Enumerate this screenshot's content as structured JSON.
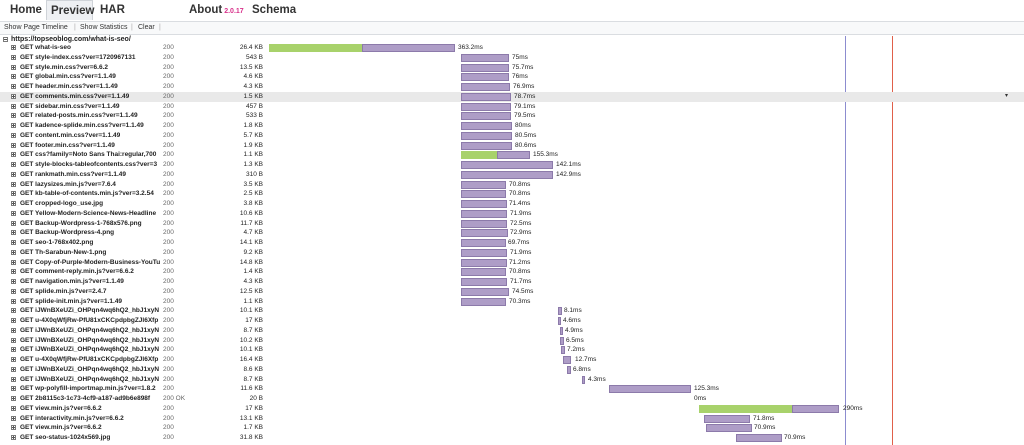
{
  "tabs": {
    "home": "Home",
    "preview": "Preview",
    "har": "HAR",
    "about": "About",
    "version": "2.0.17",
    "schema": "Schema"
  },
  "toolbar": {
    "show_page_timeline": "Show Page Timeline",
    "show_statistics": "Show Statistics",
    "clear": "Clear",
    "separator": "|"
  },
  "page": {
    "url": "https://topseoblog.com/what-is-seo/"
  },
  "timeline": {
    "dom_content_loaded_color": "#8c8ccf",
    "onload_color": "#e0604a"
  },
  "entries": [
    {
      "url": "GET what-is-seo",
      "status": "200",
      "size": "26.4 KB",
      "time": "363.2ms"
    },
    {
      "url": "GET style-index.css?ver=1720967131",
      "status": "200",
      "size": "543 B",
      "time": "75ms"
    },
    {
      "url": "GET style.min.css?ver=6.6.2",
      "status": "200",
      "size": "13.5 KB",
      "time": "75.7ms"
    },
    {
      "url": "GET global.min.css?ver=1.1.49",
      "status": "200",
      "size": "4.6 KB",
      "time": "76ms"
    },
    {
      "url": "GET header.min.css?ver=1.1.49",
      "status": "200",
      "size": "4.3 KB",
      "time": "76.9ms"
    },
    {
      "url": "GET comments.min.css?ver=1.1.49",
      "status": "200",
      "size": "1.5 KB",
      "time": "78.7ms"
    },
    {
      "url": "GET sidebar.min.css?ver=1.1.49",
      "status": "200",
      "size": "457 B",
      "time": "79.1ms"
    },
    {
      "url": "GET related-posts.min.css?ver=1.1.49",
      "status": "200",
      "size": "533 B",
      "time": "79.5ms"
    },
    {
      "url": "GET kadence-splide.min.css?ver=1.1.49",
      "status": "200",
      "size": "1.8 KB",
      "time": "80ms"
    },
    {
      "url": "GET content.min.css?ver=1.1.49",
      "status": "200",
      "size": "5.7 KB",
      "time": "80.5ms"
    },
    {
      "url": "GET footer.min.css?ver=1.1.49",
      "status": "200",
      "size": "1.9 KB",
      "time": "80.6ms"
    },
    {
      "url": "GET css?family=Noto Sans Thai:regular,700",
      "status": "200",
      "size": "1.1 KB",
      "time": "155.3ms"
    },
    {
      "url": "GET style-blocks-tableofcontents.css?ver=3",
      "status": "200",
      "size": "1.3 KB",
      "time": "142.1ms"
    },
    {
      "url": "GET rankmath.min.css?ver=1.1.49",
      "status": "200",
      "size": "310 B",
      "time": "142.9ms"
    },
    {
      "url": "GET lazysizes.min.js?ver=7.6.4",
      "status": "200",
      "size": "3.5 KB",
      "time": "70.8ms"
    },
    {
      "url": "GET kb-table-of-contents.min.js?ver=3.2.54",
      "status": "200",
      "size": "2.5 KB",
      "time": "70.8ms"
    },
    {
      "url": "GET cropped-logo_use.jpg",
      "status": "200",
      "size": "3.8 KB",
      "time": "71.4ms"
    },
    {
      "url": "GET Yellow-Modern-Science-News-Headline",
      "status": "200",
      "size": "10.6 KB",
      "time": "71.9ms"
    },
    {
      "url": "GET Backup-Wordpress-1-768x576.png",
      "status": "200",
      "size": "11.7 KB",
      "time": "72.5ms"
    },
    {
      "url": "GET Backup-Wordpress-4.png",
      "status": "200",
      "size": "4.7 KB",
      "time": "72.9ms"
    },
    {
      "url": "GET seo-1-768x402.png",
      "status": "200",
      "size": "14.1 KB",
      "time": "69.7ms"
    },
    {
      "url": "GET Th-Sarabun-New-1.png",
      "status": "200",
      "size": "9.2 KB",
      "time": "71.9ms"
    },
    {
      "url": "GET Copy-of-Purple-Modern-Business-YouTu",
      "status": "200",
      "size": "14.8 KB",
      "time": "71.2ms"
    },
    {
      "url": "GET comment-reply.min.js?ver=6.6.2",
      "status": "200",
      "size": "1.4 KB",
      "time": "70.8ms"
    },
    {
      "url": "GET navigation.min.js?ver=1.1.49",
      "status": "200",
      "size": "4.3 KB",
      "time": "71.7ms"
    },
    {
      "url": "GET splide.min.js?ver=2.4.7",
      "status": "200",
      "size": "12.5 KB",
      "time": "74.5ms"
    },
    {
      "url": "GET splide-init.min.js?ver=1.1.49",
      "status": "200",
      "size": "1.1 KB",
      "time": "70.3ms"
    },
    {
      "url": "GET iJWnBXeUZi_OHPqn4wq6hQ2_hbJ1xyN",
      "status": "200",
      "size": "10.1 KB",
      "time": "8.1ms"
    },
    {
      "url": "GET u-4X0qWfjRw-PfU81xCKCpdpbgZJl6Xfp",
      "status": "200",
      "size": "17 KB",
      "time": "4.6ms"
    },
    {
      "url": "GET iJWnBXeUZi_OHPqn4wq6hQ2_hbJ1xyN",
      "status": "200",
      "size": "8.7 KB",
      "time": "4.9ms"
    },
    {
      "url": "GET iJWnBXeUZi_OHPqn4wq6hQ2_hbJ1xyN",
      "status": "200",
      "size": "10.2 KB",
      "time": "6.5ms"
    },
    {
      "url": "GET iJWnBXeUZi_OHPqn4wq6hQ2_hbJ1xyN",
      "status": "200",
      "size": "10.1 KB",
      "time": "7.2ms"
    },
    {
      "url": "GET u-4X0qWfjRw-PfU81xCKCpdpbgZJl6Xfp",
      "status": "200",
      "size": "16.4 KB",
      "time": "12.7ms"
    },
    {
      "url": "GET iJWnBXeUZi_OHPqn4wq6hQ2_hbJ1xyN",
      "status": "200",
      "size": "8.6 KB",
      "time": "6.8ms"
    },
    {
      "url": "GET iJWnBXeUZi_OHPqn4wq6hQ2_hbJ1xyN",
      "status": "200",
      "size": "8.7 KB",
      "time": "4.3ms"
    },
    {
      "url": "GET wp-polyfill-importmap.min.js?ver=1.8.2",
      "status": "200",
      "size": "11.6 KB",
      "time": "125.3ms"
    },
    {
      "url": "GET 2b8115c3-1c73-4cf9-a187-ad9b6e898f",
      "status": "200 OK",
      "size": "20 B",
      "time": "0ms"
    },
    {
      "url": "GET view.min.js?ver=6.6.2",
      "status": "200",
      "size": "17 KB",
      "time": "290ms"
    },
    {
      "url": "GET interactivity.min.js?ver=6.6.2",
      "status": "200",
      "size": "13.1 KB",
      "time": "71.8ms"
    },
    {
      "url": "GET view.min.js?ver=6.6.2",
      "status": "200",
      "size": "1.7 KB",
      "time": "70.9ms"
    },
    {
      "url": "GET seo-status-1024x569.jpg",
      "status": "200",
      "size": "31.8 KB",
      "time": "70.9ms"
    }
  ]
}
